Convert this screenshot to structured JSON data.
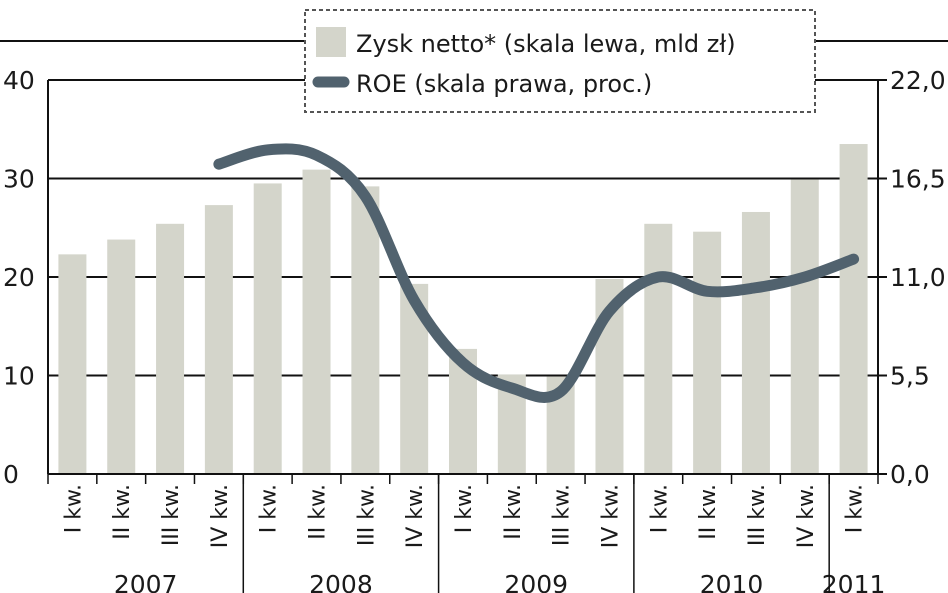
{
  "chart_data": {
    "type": "bar+line",
    "categories": [
      "I kw.",
      "II kw.",
      "III kw.",
      "IV kw.",
      "I kw.",
      "II kw.",
      "III kw.",
      "IV kw.",
      "I kw.",
      "II kw.",
      "III kw.",
      "IV kw.",
      "I kw.",
      "II kw.",
      "III kw.",
      "IV kw.",
      "I kw."
    ],
    "years": [
      {
        "label": "2007",
        "span": [
          0,
          3
        ]
      },
      {
        "label": "2008",
        "span": [
          4,
          7
        ]
      },
      {
        "label": "2009",
        "span": [
          8,
          11
        ]
      },
      {
        "label": "2010",
        "span": [
          12,
          15
        ]
      },
      {
        "label": "2011",
        "span": [
          16,
          16
        ]
      }
    ],
    "series": [
      {
        "name": "Zysk netto* (skala lewa, mld zł)",
        "type": "bar",
        "axis": "left",
        "color": "#d4d5cb",
        "values": [
          22.3,
          23.8,
          25.4,
          27.3,
          29.5,
          30.9,
          29.2,
          19.3,
          12.7,
          10.1,
          9.9,
          19.8,
          25.4,
          24.6,
          26.6,
          29.9,
          33.5
        ]
      },
      {
        "name": "ROE (skala prawa, proc.)",
        "type": "line",
        "axis": "right",
        "color": "#51626e",
        "values": [
          null,
          null,
          null,
          17.3,
          18.1,
          17.8,
          15.5,
          9.7,
          6.2,
          4.8,
          4.6,
          9.1,
          11.0,
          10.2,
          10.4,
          11.0,
          12.0
        ]
      }
    ],
    "left_axis": {
      "ylim": [
        0,
        40
      ],
      "ticks": [
        "0",
        "10",
        "20",
        "30",
        "40"
      ]
    },
    "right_axis": {
      "ylim": [
        0,
        22
      ],
      "ticks": [
        "0,0",
        "5,5",
        "11,0",
        "16,5",
        "22,0"
      ]
    },
    "grid": true,
    "legend_placement": "top-center"
  }
}
